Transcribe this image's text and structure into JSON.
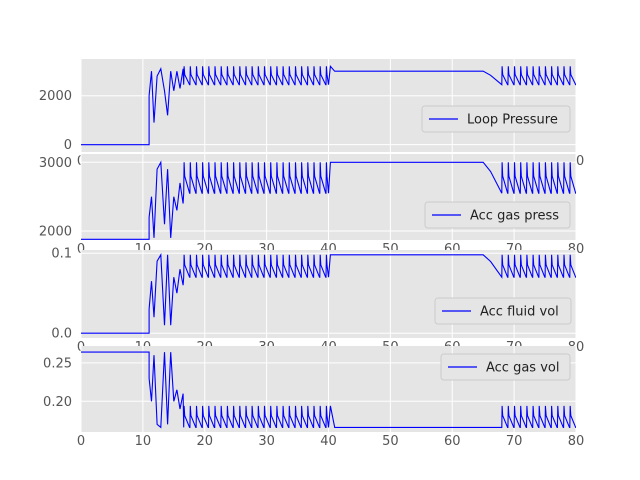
{
  "chart_data": [
    {
      "type": "line",
      "legend": "Loop Pressure",
      "legend_position": "lower-right",
      "color": "#0000ff",
      "xlim": [
        0,
        80
      ],
      "ylim": [
        -300,
        3500
      ],
      "xticks": [
        0,
        10,
        20,
        30,
        40,
        50,
        60,
        70,
        80
      ],
      "yticks": [
        0,
        2000
      ],
      "baseline": 0,
      "plateau": 3000,
      "osc_low": 2450,
      "osc_high": 3200,
      "transient": [
        [
          11.0,
          2000
        ],
        [
          11.4,
          3000
        ],
        [
          11.8,
          900
        ],
        [
          12.3,
          2800
        ],
        [
          12.9,
          3100
        ],
        [
          13.5,
          2200
        ],
        [
          14.0,
          1200
        ],
        [
          14.5,
          3000
        ],
        [
          15.0,
          2200
        ],
        [
          15.5,
          3000
        ],
        [
          16.0,
          2300
        ],
        [
          16.5,
          3100
        ]
      ],
      "grid": true
    },
    {
      "type": "line",
      "legend": "Acc gas press",
      "legend_position": "lower-right",
      "color": "#0000ff",
      "xlim": [
        0,
        80
      ],
      "ylim": [
        1870,
        3120
      ],
      "xticks": [
        0,
        10,
        20,
        30,
        40,
        50,
        60,
        70,
        80
      ],
      "yticks": [
        2000,
        3000
      ],
      "baseline": 1880,
      "plateau": 3000,
      "osc_low": 2550,
      "osc_high": 3000,
      "transient": [
        [
          11.0,
          2200
        ],
        [
          11.4,
          2500
        ],
        [
          11.8,
          1900
        ],
        [
          12.3,
          2900
        ],
        [
          12.9,
          3000
        ],
        [
          13.5,
          2100
        ],
        [
          14.0,
          2900
        ],
        [
          14.5,
          1900
        ],
        [
          15.0,
          2500
        ],
        [
          15.5,
          2300
        ],
        [
          16.0,
          2700
        ],
        [
          16.5,
          2400
        ]
      ],
      "grid": true
    },
    {
      "type": "line",
      "legend": "Acc fluid vol",
      "legend_position": "lower-right",
      "color": "#0000ff",
      "xlim": [
        0,
        80
      ],
      "ylim": [
        -0.006,
        0.104
      ],
      "xticks": [
        0,
        10,
        20,
        30,
        40,
        50,
        60,
        70,
        80
      ],
      "yticks": [
        0.0,
        0.1
      ],
      "ytick_labels": [
        "0.0",
        "0.1"
      ],
      "baseline": 0.0,
      "plateau": 0.098,
      "osc_low": 0.07,
      "osc_high": 0.098,
      "transient": [
        [
          11.0,
          0.03
        ],
        [
          11.4,
          0.065
        ],
        [
          11.8,
          0.02
        ],
        [
          12.3,
          0.09
        ],
        [
          12.9,
          0.098
        ],
        [
          13.5,
          0.01
        ],
        [
          14.0,
          0.098
        ],
        [
          14.5,
          0.01
        ],
        [
          15.0,
          0.07
        ],
        [
          15.5,
          0.05
        ],
        [
          16.0,
          0.08
        ],
        [
          16.5,
          0.06
        ]
      ],
      "grid": true
    },
    {
      "type": "line",
      "legend": "Acc gas vol",
      "legend_position": "upper-right",
      "color": "#0000ff",
      "xlim": [
        0,
        80
      ],
      "ylim": [
        0.16,
        0.272
      ],
      "xticks": [
        0,
        10,
        20,
        30,
        40,
        50,
        60,
        70,
        80
      ],
      "yticks": [
        0.2,
        0.25
      ],
      "ytick_labels": [
        "0.20",
        "0.25"
      ],
      "baseline": 0.264,
      "plateau": 0.166,
      "osc_low": 0.166,
      "osc_high": 0.194,
      "transient": [
        [
          11.0,
          0.23
        ],
        [
          11.4,
          0.2
        ],
        [
          11.8,
          0.26
        ],
        [
          12.3,
          0.17
        ],
        [
          12.9,
          0.166
        ],
        [
          13.5,
          0.264
        ],
        [
          14.0,
          0.17
        ],
        [
          14.5,
          0.264
        ],
        [
          15.0,
          0.2
        ],
        [
          15.5,
          0.215
        ],
        [
          16.0,
          0.19
        ],
        [
          16.5,
          0.21
        ]
      ],
      "grid": true
    }
  ],
  "shared_profile": {
    "off_end": 11.0,
    "transient_end": 16.6,
    "cycle_end": 40.0,
    "plateau_start": 41.0,
    "plateau_end": 65.0,
    "ramp_end": 68.0,
    "period": 1.0,
    "x_end": 80
  }
}
